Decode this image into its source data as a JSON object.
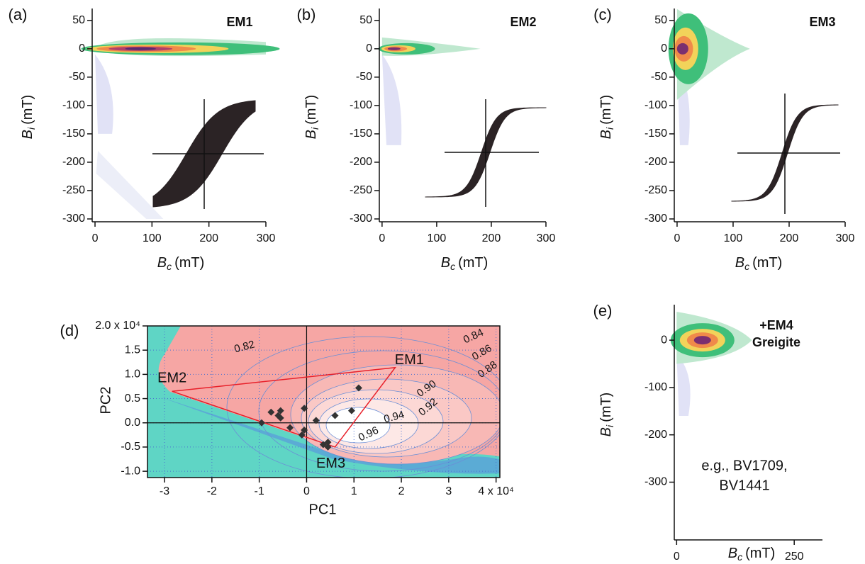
{
  "chart_data": [
    {
      "type": "forc",
      "label": "(a)",
      "title": "EM1",
      "x_label": {
        "symbol": "B",
        "sub": "c",
        "unit": "(mT)"
      },
      "y_label": {
        "symbol": "B",
        "sub": "i",
        "unit": "(mT)"
      },
      "xlim": [
        -5,
        300
      ],
      "ylim": [
        -305,
        71
      ],
      "xticks": [
        0,
        100,
        200,
        300
      ],
      "yticks": [
        50,
        0,
        -50,
        -100,
        -150,
        -200,
        -250,
        -300
      ]
    },
    {
      "type": "forc",
      "label": "(b)",
      "title": "EM2",
      "x_label": {
        "symbol": "B",
        "sub": "c",
        "unit": "(mT)"
      },
      "y_label": {
        "symbol": "B",
        "sub": "i",
        "unit": "(mT)"
      },
      "xlim": [
        -5,
        300
      ],
      "ylim": [
        -305,
        71
      ],
      "xticks": [
        0,
        100,
        200,
        300
      ],
      "yticks": [
        50,
        0,
        -50,
        -100,
        -150,
        -200,
        -250,
        -300
      ]
    },
    {
      "type": "forc",
      "label": "(c)",
      "title": "EM3",
      "x_label": {
        "symbol": "B",
        "sub": "c",
        "unit": "(mT)"
      },
      "y_label": {
        "symbol": "B",
        "sub": "i",
        "unit": "(mT)"
      },
      "xlim": [
        -5,
        300
      ],
      "ylim": [
        -305,
        71
      ],
      "xticks": [
        0,
        100,
        200,
        300
      ],
      "yticks": [
        50,
        0,
        -50,
        -100,
        -150,
        -200,
        -250,
        -300
      ]
    },
    {
      "type": "scatter",
      "label": "(d)",
      "x_label": "PC1",
      "y_label": "PC2",
      "grid": true,
      "xlim": [
        -3.36,
        4.08
      ],
      "ylim": [
        -1.13,
        2.0
      ],
      "xticks": [
        -3,
        -2,
        -1,
        0,
        1,
        2,
        3,
        {
          "value": 4,
          "label": "4 x 10⁴"
        }
      ],
      "yticks": [
        {
          "value": -1,
          "label": "-1.0"
        },
        {
          "value": -0.5,
          "label": "-0.5"
        },
        {
          "value": 0,
          "label": "0.0"
        },
        {
          "value": 0.5,
          "label": "0.5"
        },
        {
          "value": 1,
          "label": "1.0"
        },
        {
          "value": 1.5,
          "label": "1.5"
        },
        {
          "value": 2,
          "label": "2.0 x 10⁴"
        }
      ],
      "x": [
        -0.95,
        -0.75,
        -0.6,
        -0.55,
        -0.55,
        -0.35,
        -0.05,
        -0.05,
        -0.1,
        0.2,
        0.35,
        0.45,
        0.45,
        0.6,
        0.95,
        1.1
      ],
      "values": [
        0.0,
        0.22,
        0.15,
        0.25,
        0.1,
        -0.1,
        0.3,
        -0.15,
        -0.25,
        0.05,
        -0.45,
        -0.4,
        -0.5,
        0.15,
        0.25,
        0.72
      ],
      "color": "#333333",
      "endmembers": {
        "names": [
          "EM1",
          "EM2",
          "EM3"
        ],
        "x": [
          1.87,
          -2.84,
          0.6
        ],
        "y": [
          1.14,
          0.65,
          -0.5
        ],
        "color": "#e8202a"
      },
      "contour_labels": [
        "0.82",
        "0.84",
        "0.86",
        "0.88",
        "0.90",
        "0.92",
        "0.94",
        "0.96"
      ]
    },
    {
      "type": "forc",
      "label": "(e)",
      "title": "+EM4",
      "subtitle": "Greigite",
      "annotation": [
        "e.g., BV1709,",
        "BV1441"
      ],
      "x_label": {
        "symbol": "B",
        "sub": "c",
        "unit": "(mT)"
      },
      "y_label": {
        "symbol": "B",
        "sub": "i",
        "unit": "(mT)"
      },
      "xlim": [
        -5,
        310
      ],
      "ylim": [
        -422,
        75
      ],
      "xticks": [
        0,
        250
      ],
      "yticks": [
        0,
        -100,
        -200,
        -300
      ]
    }
  ]
}
